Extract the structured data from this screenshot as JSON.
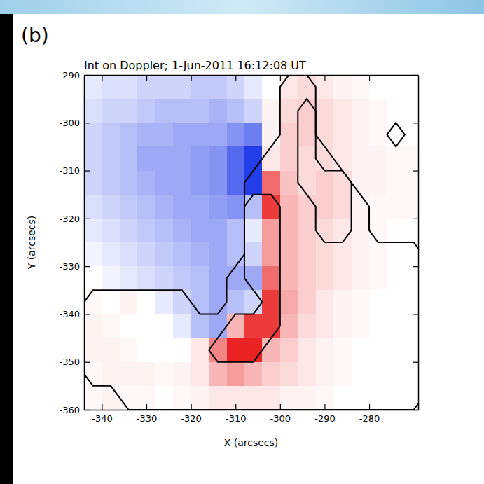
{
  "chart_data": {
    "type": "heatmap",
    "panel_label": "(b)",
    "title": "Int on Doppler; 1-Jun-2011 16:12:08 UT",
    "x_label": "X (arcsecs)",
    "y_label": "Y (arcsecs)",
    "xlim": [
      -344,
      -269
    ],
    "ylim": [
      -360,
      -290
    ],
    "xticks": [
      -340,
      -330,
      -320,
      -310,
      -300,
      -290,
      -280
    ],
    "yticks": [
      -360,
      -350,
      -340,
      -330,
      -320,
      -310,
      -300,
      -290
    ],
    "zlim": [
      -10,
      10
    ],
    "x": [
      -342,
      -338,
      -334,
      -330,
      -326,
      -322,
      -318,
      -314,
      -310,
      -306,
      -302,
      -298,
      -294,
      -290,
      -286,
      -282,
      -278,
      -274,
      -270
    ],
    "y": [
      -292.5,
      -297.5,
      -302.5,
      -307.5,
      -312.5,
      -317.5,
      -322.5,
      -327.5,
      -332.5,
      -337.5,
      -342.5,
      -347.5,
      -352.5,
      -357.5
    ],
    "doppler": [
      [
        -1,
        -1.5,
        -1.5,
        -2,
        -2,
        -2,
        -2.5,
        -2.5,
        -2,
        -1,
        0,
        1,
        1.5,
        1,
        0.5,
        0.3,
        0,
        0,
        0
      ],
      [
        -1.5,
        -2,
        -2,
        -2.5,
        -3,
        -3,
        -3,
        -3.5,
        -3,
        -2,
        0.5,
        1.5,
        2,
        1.5,
        1,
        0.5,
        0.3,
        0,
        0
      ],
      [
        -2,
        -2.5,
        -3,
        -3.5,
        -3.5,
        -4,
        -4,
        -4,
        -5,
        -6,
        0.5,
        2,
        2,
        1.5,
        1,
        0.5,
        0.3,
        0,
        0
      ],
      [
        -2,
        -2.5,
        -3,
        -4,
        -4,
        -4,
        -4.5,
        -5,
        -7,
        -9,
        1,
        2,
        1.5,
        1.5,
        1,
        0.5,
        0.5,
        0.3,
        0.3
      ],
      [
        -2,
        -2.5,
        -3,
        -3.5,
        -4,
        -4,
        -4.5,
        -5,
        -7,
        -9,
        6,
        2.5,
        1.5,
        2,
        1.5,
        0.5,
        0.5,
        0.3,
        0.3
      ],
      [
        -1.5,
        -2,
        -2.5,
        -3,
        -3.5,
        -4,
        -4,
        -4.5,
        -5,
        -3,
        8,
        3,
        2,
        2,
        1.5,
        0.5,
        0.3,
        0.3,
        0.3
      ],
      [
        -1,
        -1.5,
        -2,
        -2.5,
        -3,
        -3.5,
        -4,
        -4,
        -3,
        -1,
        4,
        3,
        2,
        1.5,
        1,
        0.5,
        0.3,
        0,
        0
      ],
      [
        -0.5,
        -1,
        -1.5,
        -2,
        -2.5,
        -3,
        -3.5,
        -4,
        -3,
        -2,
        4,
        3,
        2,
        1.5,
        1,
        0.5,
        0.3,
        0,
        0
      ],
      [
        0,
        -0.5,
        -1,
        -1.5,
        -2,
        -2.5,
        -3,
        -4,
        -4,
        -4,
        6,
        3,
        2,
        1.5,
        1,
        0.5,
        0.3,
        0,
        0
      ],
      [
        0.3,
        0,
        0.5,
        0,
        -1,
        -2,
        -3,
        -4,
        -3,
        -2,
        8,
        3.5,
        2,
        1,
        0.5,
        0.3,
        0,
        0,
        0
      ],
      [
        0.5,
        0.3,
        0,
        0,
        0,
        -1,
        -3,
        -4,
        3,
        8,
        8,
        3,
        1.5,
        1,
        0.5,
        0.3,
        0,
        0,
        0
      ],
      [
        0.5,
        0.5,
        0.3,
        0,
        0,
        0,
        1,
        5,
        9,
        9,
        3,
        2,
        1,
        0.5,
        0.3,
        0,
        0,
        0,
        0
      ],
      [
        0.3,
        0.5,
        0.5,
        0.5,
        0.3,
        0.5,
        1,
        3,
        4,
        3,
        2,
        1.5,
        1,
        0.5,
        0.3,
        0,
        0,
        0,
        0
      ],
      [
        0.3,
        0.5,
        0.3,
        0.3,
        0,
        0.3,
        0.5,
        1,
        1,
        1,
        1,
        0.5,
        0.5,
        0.3,
        0,
        0,
        0,
        0,
        0
      ]
    ],
    "intensity": [
      [
        0,
        0,
        0,
        0,
        0,
        0,
        0,
        0,
        0,
        0,
        0,
        1,
        1,
        0,
        0,
        0,
        0,
        0,
        0
      ],
      [
        0,
        0,
        0,
        0,
        0,
        0,
        0,
        0,
        0,
        0,
        0,
        1,
        2,
        0,
        0,
        0,
        0,
        0,
        0
      ],
      [
        0,
        0,
        0,
        0,
        0,
        0,
        0,
        0,
        0,
        0,
        0,
        1,
        2,
        0,
        0,
        0,
        0,
        1,
        0
      ],
      [
        0,
        0,
        0,
        0,
        0,
        0,
        0,
        0,
        0,
        0,
        1,
        1,
        2,
        1,
        0,
        0,
        0,
        0,
        0
      ],
      [
        0,
        0,
        0,
        0,
        0,
        0,
        0,
        0,
        0,
        1,
        1,
        1,
        2,
        2,
        2,
        0,
        0,
        0,
        0
      ],
      [
        0,
        0,
        0,
        0,
        0,
        0,
        0,
        0,
        0,
        2,
        2,
        1,
        1,
        2,
        2,
        1,
        0,
        0,
        0
      ],
      [
        0,
        0,
        0,
        0,
        0,
        0,
        0,
        0,
        0,
        2,
        2,
        1,
        1,
        2,
        2,
        1,
        0,
        0,
        0
      ],
      [
        0,
        0,
        0,
        0,
        0,
        0,
        0,
        0,
        0,
        2,
        2,
        1,
        1,
        1,
        1,
        1,
        1,
        1,
        1
      ],
      [
        0,
        0,
        0,
        0,
        0,
        0,
        0,
        0,
        1,
        2,
        2,
        1,
        1,
        1,
        1,
        1,
        1,
        1,
        1
      ],
      [
        1,
        1,
        1,
        1,
        1,
        1,
        0,
        0,
        1,
        1,
        2,
        1,
        1,
        1,
        1,
        1,
        1,
        1,
        1
      ],
      [
        1,
        1,
        1,
        1,
        1,
        1,
        1,
        1,
        2,
        2,
        2,
        1,
        1,
        1,
        1,
        1,
        1,
        1,
        1
      ],
      [
        1,
        1,
        1,
        1,
        1,
        1,
        1,
        2,
        2,
        2,
        1,
        1,
        1,
        1,
        1,
        1,
        1,
        1,
        1
      ],
      [
        1,
        1,
        1,
        1,
        1,
        1,
        1,
        1,
        1,
        1,
        1,
        1,
        1,
        1,
        1,
        1,
        1,
        1,
        1
      ],
      [
        0,
        0,
        1,
        1,
        1,
        1,
        1,
        1,
        1,
        1,
        1,
        1,
        1,
        1,
        1,
        1,
        1,
        1,
        1
      ]
    ],
    "contour_levels": [
      0.5,
      1.5
    ]
  }
}
